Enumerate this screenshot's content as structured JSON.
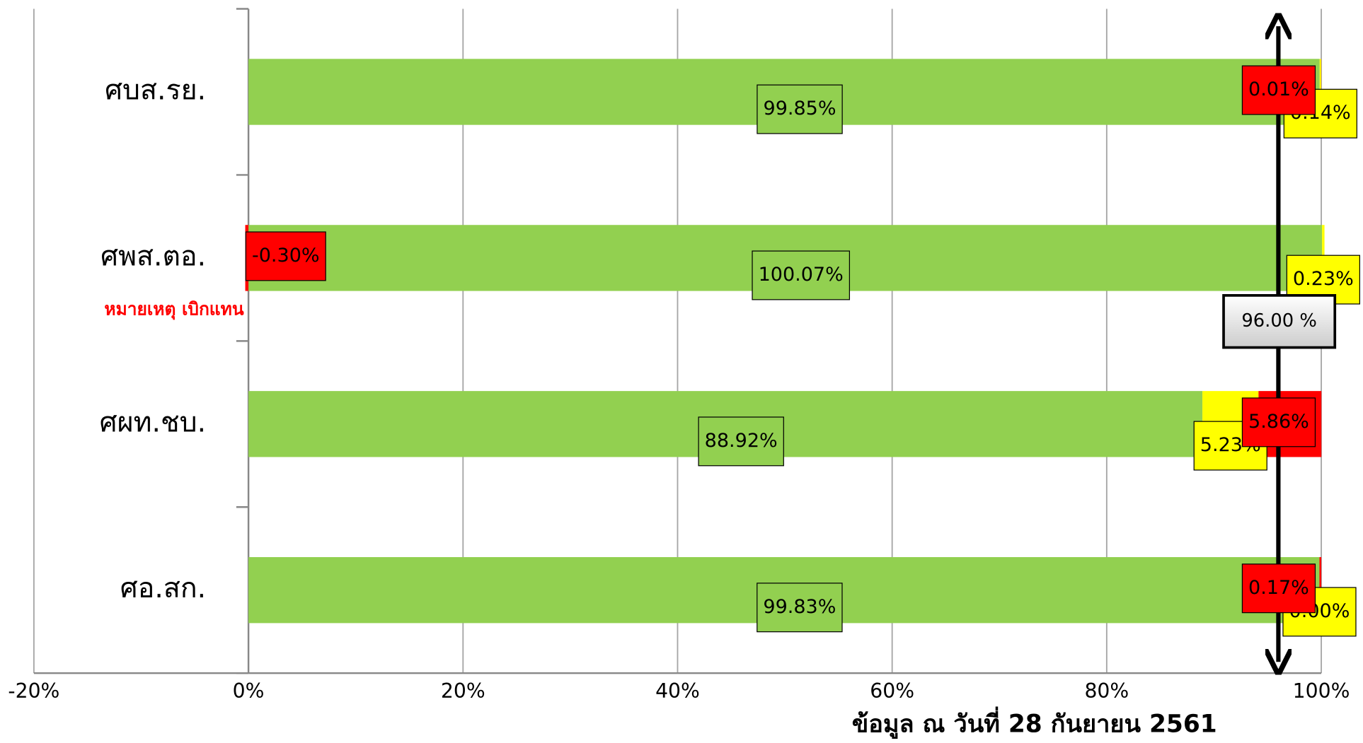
{
  "chart_data": {
    "type": "stacked_barh",
    "categories": [
      "ศบส.รย.",
      "ศพส.ตอ.",
      "ศผท.ชบ.",
      "ศอ.สก."
    ],
    "series": [
      {
        "color": "#92d050",
        "values": [
          99.85,
          100.07,
          88.92,
          99.83
        ],
        "value_labels": [
          "99.85%",
          "100.07%",
          "88.92%",
          "99.83%"
        ]
      },
      {
        "color": "#ffff00",
        "values": [
          0.14,
          0.23,
          5.23,
          0.0
        ],
        "value_labels": [
          "0.14%",
          "0.23%",
          "5.23%",
          "0.00%"
        ]
      },
      {
        "color": "#ff0000",
        "values": [
          0.01,
          -0.3,
          5.86,
          0.17
        ],
        "value_labels": [
          "0.01%",
          "-0.30%",
          "5.86%",
          "0.17%"
        ]
      }
    ],
    "xlim": [
      -20,
      100
    ],
    "xticks": [
      {
        "value": -20,
        "label": "-20%"
      },
      {
        "value": 0,
        "label": "0%"
      },
      {
        "value": 20,
        "label": "20%"
      },
      {
        "value": 40,
        "label": "40%"
      },
      {
        "value": 60,
        "label": "60%"
      },
      {
        "value": 80,
        "label": "80%"
      },
      {
        "value": 100,
        "label": "100%"
      }
    ],
    "grid": true,
    "reference_line": {
      "value": 96,
      "label": "96.00 %"
    },
    "annotation": "หมายเหตุ เบิกแทน",
    "footer": "ข้อมูล ณ วันที่ 28 กันยายน 2561"
  }
}
